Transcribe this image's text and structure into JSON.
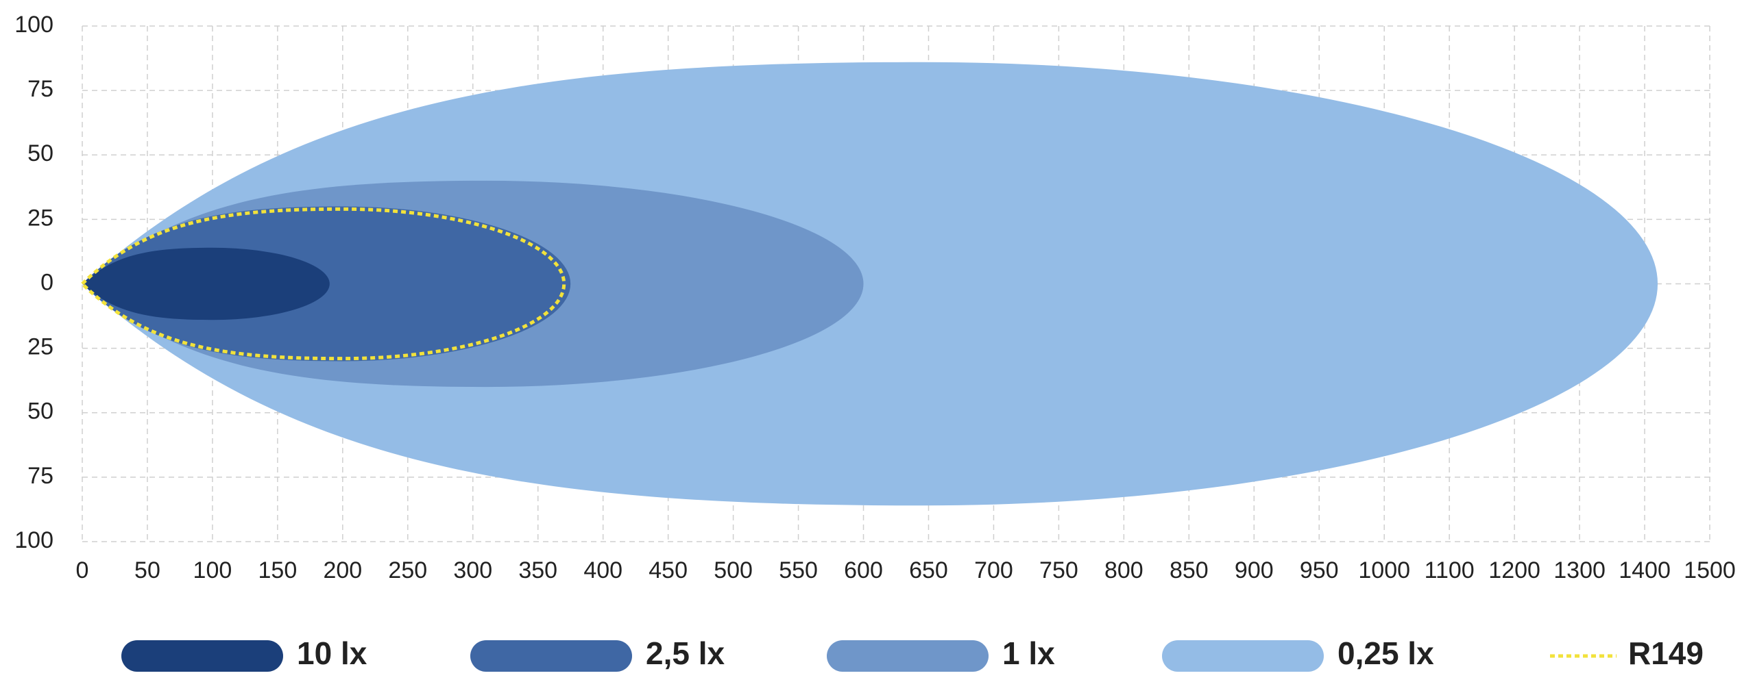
{
  "chart_data": {
    "type": "isolux",
    "xlim": [
      0,
      1500
    ],
    "ylim": [
      -100,
      100
    ],
    "xticks": [
      0,
      50,
      100,
      150,
      200,
      250,
      300,
      350,
      400,
      450,
      500,
      550,
      600,
      650,
      700,
      750,
      800,
      850,
      900,
      950,
      1000,
      1100,
      1200,
      1300,
      1400,
      1500
    ],
    "yticks": [
      {
        "value": -100,
        "label": "100"
      },
      {
        "value": -75,
        "label": "75"
      },
      {
        "value": -50,
        "label": "50"
      },
      {
        "value": -25,
        "label": "25"
      },
      0,
      25,
      50,
      75,
      100
    ],
    "grid": true,
    "series": [
      {
        "name": "10 lx",
        "color": "#1b3f7a",
        "kind": "area",
        "reach": 190,
        "peak": 100,
        "width": 14
      },
      {
        "name": "2,5 lx",
        "color": "#3f67a4",
        "kind": "area",
        "reach": 375,
        "peak": 200,
        "width": 30
      },
      {
        "name": "1 lx",
        "color": "#6f96c9",
        "kind": "area",
        "reach": 600,
        "peak": 310,
        "width": 40
      },
      {
        "name": "0,25 lx",
        "color": "#94bce6",
        "kind": "area",
        "reach": 1420,
        "peak": 645,
        "width": 86
      },
      {
        "name": "R149",
        "color": "#f2e23b",
        "kind": "outline",
        "reach": 370,
        "peak": 200,
        "width": 29
      }
    ]
  }
}
